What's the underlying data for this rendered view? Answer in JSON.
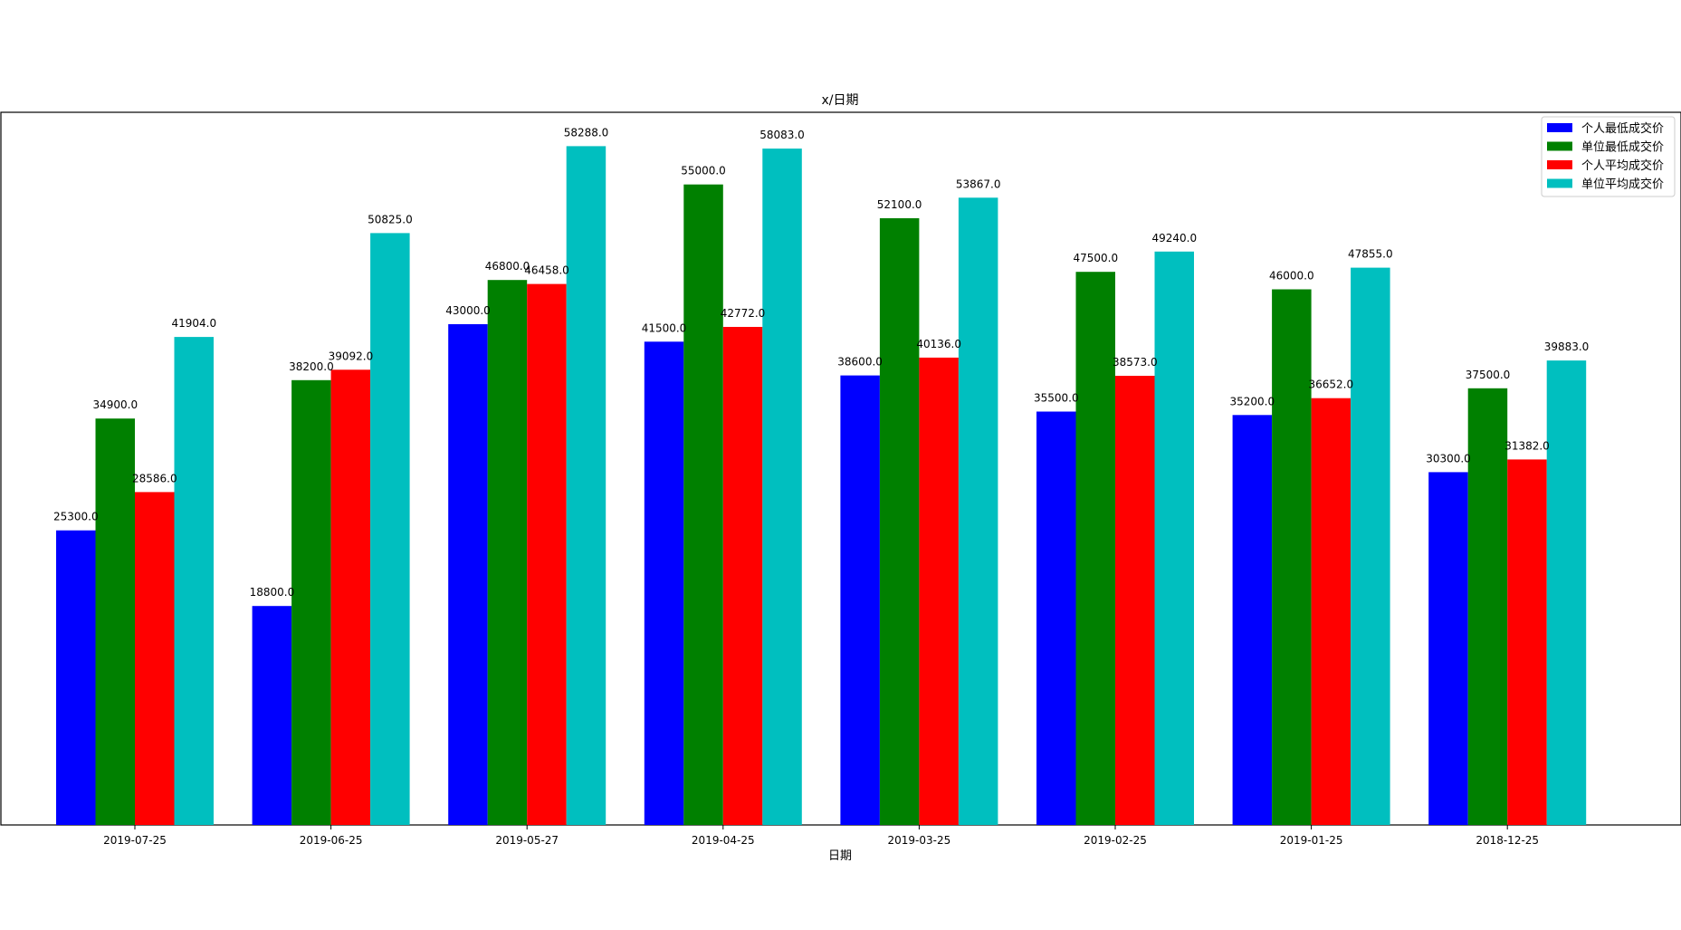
{
  "chart_data": {
    "type": "bar",
    "title": "x/日期",
    "xlabel": "日期",
    "ylabel": "",
    "categories": [
      "2019-07-25",
      "2019-06-25",
      "2019-05-27",
      "2019-04-25",
      "2019-03-25",
      "2019-02-25",
      "2019-01-25",
      "2018-12-25"
    ],
    "series": [
      {
        "name": "个人最低成交价",
        "color": "#0000ff",
        "values": [
          25300,
          18800,
          43000,
          41500,
          38600,
          35500,
          35200,
          30300
        ]
      },
      {
        "name": "单位最低成交价",
        "color": "#008000",
        "values": [
          34900,
          38200,
          46800,
          55000,
          52100,
          47500,
          46000,
          37500
        ]
      },
      {
        "name": "个人平均成交价",
        "color": "#ff0000",
        "values": [
          28586,
          39092,
          46458,
          42772,
          40136,
          38573,
          36652,
          31382
        ]
      },
      {
        "name": "单位平均成交价",
        "color": "#00bfbf",
        "values": [
          41904,
          50825,
          58288,
          58083,
          53867,
          49240,
          47855,
          39883
        ]
      }
    ],
    "ylim": [
      0,
      61200
    ],
    "y_ticks_visible": false,
    "grid": false,
    "legend_position": "top-right",
    "data_label_format": "value with one decimal, e.g. 25300.0"
  }
}
